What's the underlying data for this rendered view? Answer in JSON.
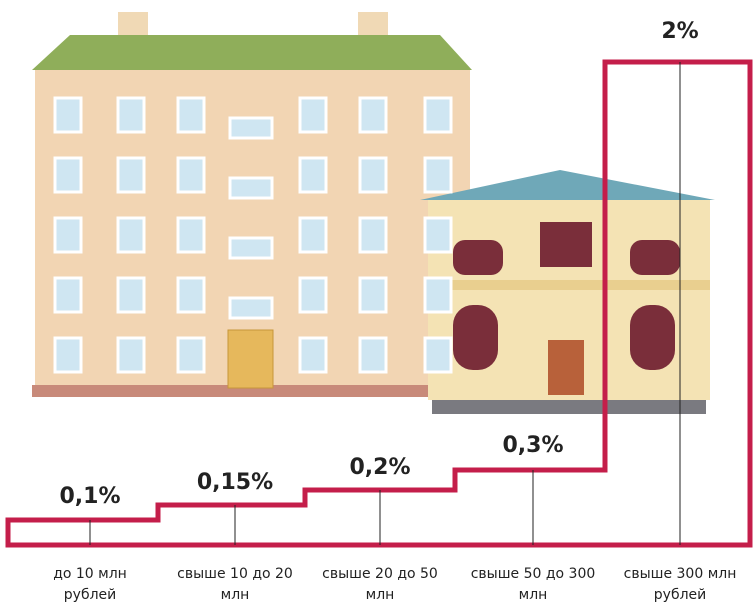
{
  "steps": [
    {
      "rate": "0,1%",
      "range": [
        "до 10 млн",
        "рублей"
      ]
    },
    {
      "rate": "0,15%",
      "range": [
        "свыше 10  до 20",
        "млн"
      ]
    },
    {
      "rate": "0,2%",
      "range": [
        "свыше 20  до 50",
        "млн"
      ]
    },
    {
      "rate": "0,3%",
      "range": [
        "свыше 50  до 300",
        "млн"
      ]
    },
    {
      "rate": "2%",
      "range": [
        "свыше  300 млн",
        "рублей"
      ]
    }
  ]
}
